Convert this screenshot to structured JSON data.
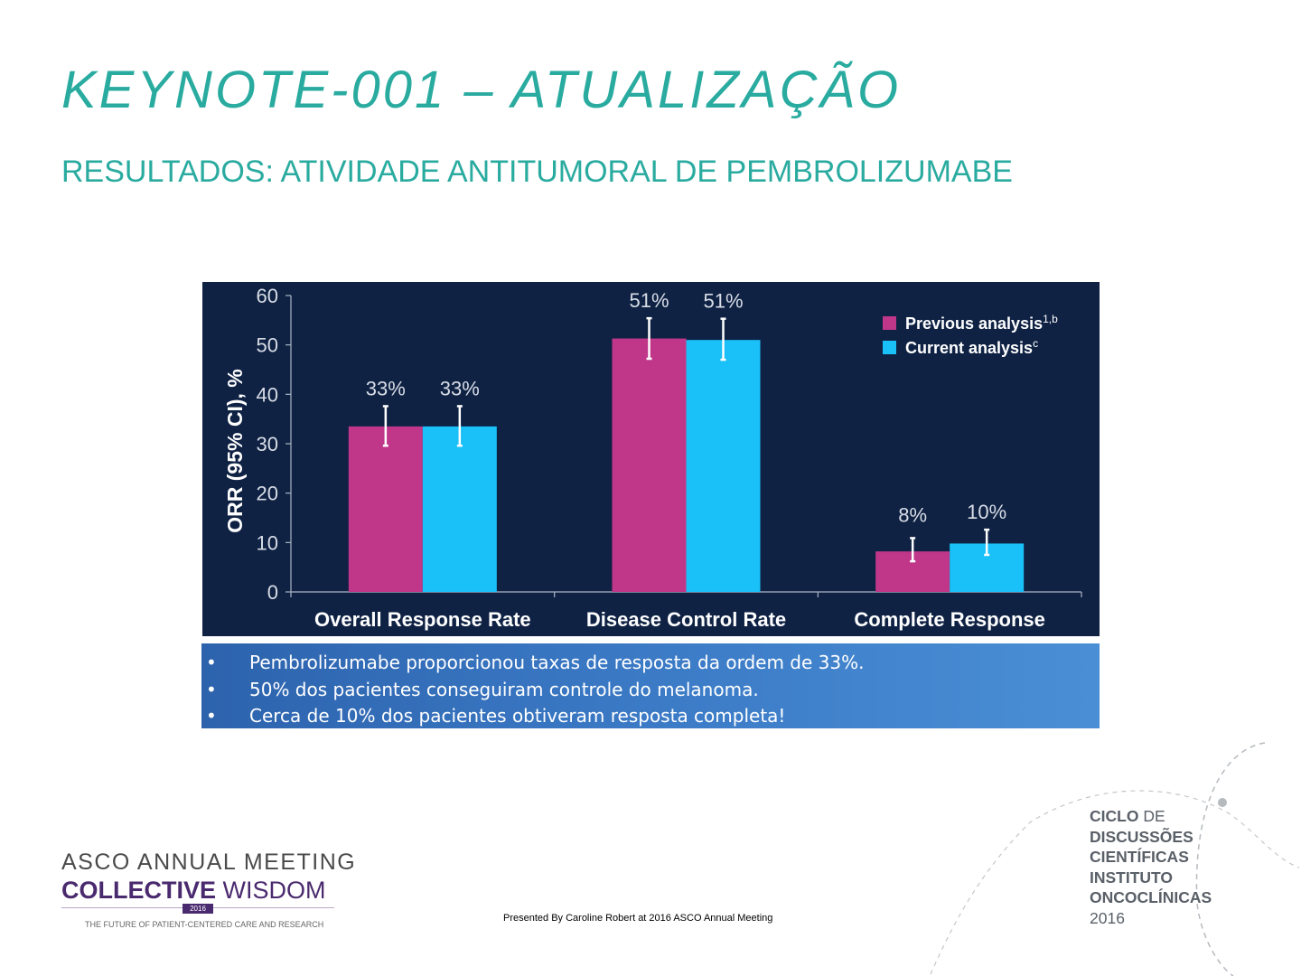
{
  "slide": {
    "title": "KEYNOTE-001 – ATUALIZAÇÃO",
    "subtitle": "RESULTADOS: ATIVIDADE ANTITUMORAL DE PEMBROLIZUMABE"
  },
  "colors": {
    "title": "#2aaba0",
    "chart_background": "#0f2244",
    "previous": "#c0378a",
    "current": "#1ac0f8",
    "notes_box": "#3a78c4"
  },
  "chart_data": {
    "type": "bar",
    "ylabel": "ORR (95% CI), %",
    "xlabel": "",
    "ylim": [
      0,
      60
    ],
    "yticks": [
      0,
      10,
      20,
      30,
      40,
      50,
      60
    ],
    "grid": false,
    "legend_position": "top-right",
    "categories": [
      "Overall Response Rate",
      "Disease Control Rate",
      "Complete Response"
    ],
    "series": [
      {
        "name": "Previous analysis",
        "name_superscript": "1,b",
        "values": [
          33.5,
          51.3,
          8.2
        ],
        "ci_low": [
          29.6,
          47.2,
          6.2
        ],
        "ci_high": [
          37.6,
          55.4,
          10.9
        ],
        "labels": [
          "33%",
          "51%",
          "8%"
        ]
      },
      {
        "name": "Current analysis",
        "name_superscript": "c",
        "values": [
          33.5,
          51.0,
          9.8
        ],
        "ci_low": [
          29.6,
          47.0,
          7.5
        ],
        "ci_high": [
          37.6,
          55.3,
          12.6
        ],
        "labels": [
          "33%",
          "51%",
          "10%"
        ]
      }
    ]
  },
  "notes": [
    "Pembrolizumabe proporcionou taxas de resposta da ordem de 33%.",
    "50% dos pacientes conseguiram controle do melanoma.",
    "Cerca de 10% dos pacientes obtiveram resposta  completa!"
  ],
  "bullet": "•",
  "footer": {
    "asco_line1": "ASCO ANNUAL MEETING",
    "asco_line2_bold": "COLLECTIVE",
    "asco_line2_light": "WISDOM",
    "asco_year": "2016",
    "asco_tagline": "THE FUTURE OF PATIENT-CENTERED CARE AND RESEARCH",
    "credit": "Presented By Caroline Robert at 2016 ASCO Annual Meeting",
    "org": [
      {
        "bold": "CICLO",
        "light": " DE"
      },
      {
        "bold": "DISCUSSÕES",
        "light": ""
      },
      {
        "bold": "CIENTÍFICAS",
        "light": ""
      },
      {
        "bold": "INSTITUTO",
        "light": ""
      },
      {
        "bold": "ONCOCLÍNICAS",
        "light": ""
      },
      {
        "bold": "",
        "light": "2016"
      }
    ]
  }
}
